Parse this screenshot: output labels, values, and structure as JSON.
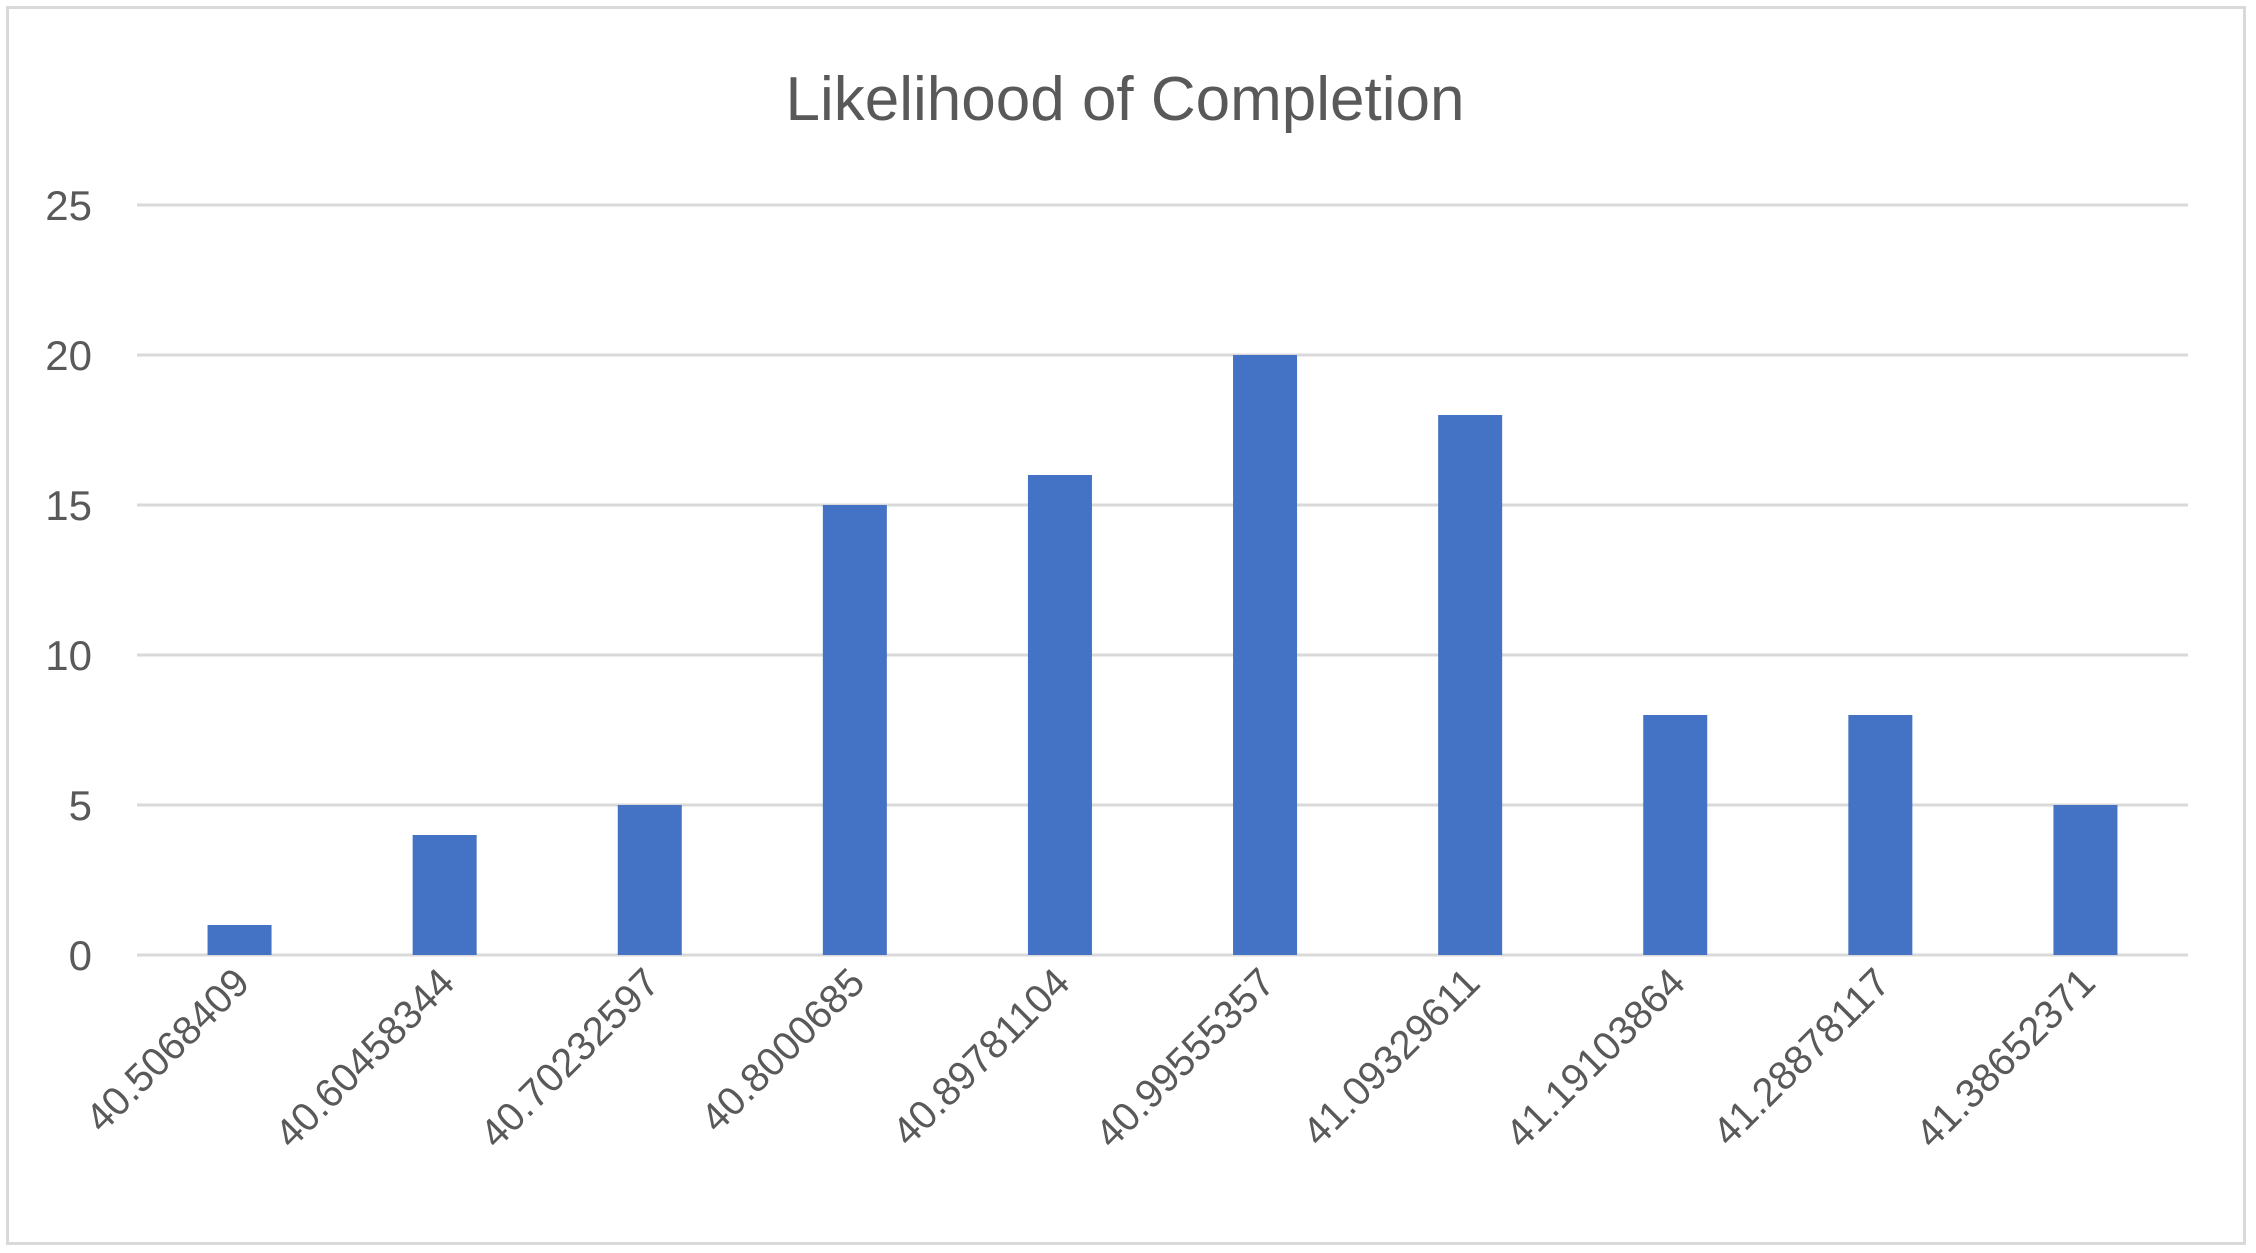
{
  "chart_data": {
    "type": "bar",
    "title": "Likelihood of Completion",
    "xlabel": "",
    "ylabel": "",
    "categories": [
      "40.5068409",
      "40.60458344",
      "40.70232597",
      "40.8000685",
      "40.89781104",
      "40.99555357",
      "41.09329611",
      "41.19103864",
      "41.28878117",
      "41.38652371"
    ],
    "values": [
      1,
      4,
      5,
      15,
      16,
      20,
      18,
      8,
      8,
      5
    ],
    "ylim": [
      0,
      25
    ],
    "yticks": [
      "0",
      "5",
      "10",
      "15",
      "20",
      "25"
    ],
    "grid": true,
    "legend": "none",
    "bar_color": "#4472c4"
  }
}
